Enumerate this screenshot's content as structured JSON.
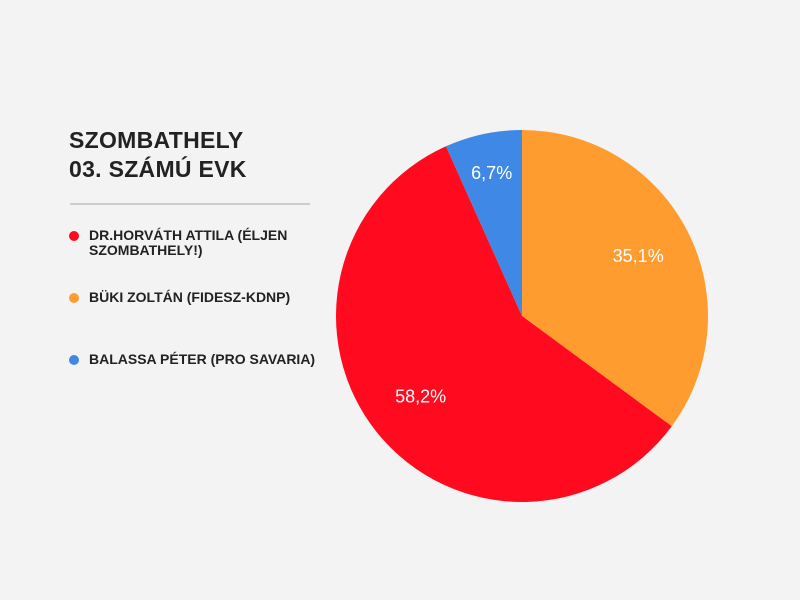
{
  "chart_data": {
    "type": "pie",
    "title_lines": [
      "SZOMBATHELY",
      "03. SZÁMÚ EVK"
    ],
    "legend_position": "left",
    "slices": [
      {
        "label": "BÜKI ZOLTÁN (FIDESZ-KDNP)",
        "value": 35.1,
        "display": "35,1%",
        "color": "#ff9c2f"
      },
      {
        "label": "DR.HORVÁTH ATTILA (ÉLJEN SZOMBATHELY!)",
        "value": 58.2,
        "display": "58,2%",
        "color": "#ff0a1e"
      },
      {
        "label": "BALASSA PÉTER (PRO SAVARIA)",
        "value": 6.7,
        "display": "6,7%",
        "color": "#3f88e5"
      }
    ]
  },
  "legend": [
    {
      "label": "DR.HORVÁTH ATTILA (ÉLJEN SZOMBATHELY!)",
      "color": "#ff0a1e"
    },
    {
      "label": "BÜKI ZOLTÁN (FIDESZ-KDNP)",
      "color": "#ff9c2f"
    },
    {
      "label": "BALASSA PÉTER (PRO SAVARIA)",
      "color": "#3f88e5"
    }
  ]
}
